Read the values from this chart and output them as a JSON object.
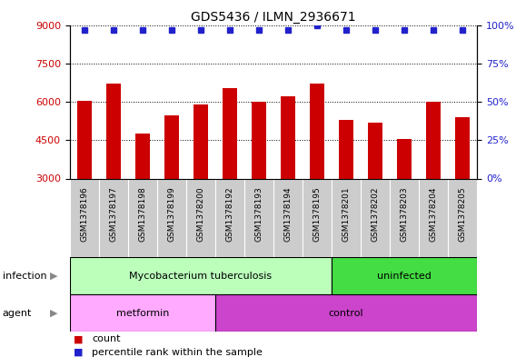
{
  "title": "GDS5436 / ILMN_2936671",
  "samples": [
    "GSM1378196",
    "GSM1378197",
    "GSM1378198",
    "GSM1378199",
    "GSM1378200",
    "GSM1378192",
    "GSM1378193",
    "GSM1378194",
    "GSM1378195",
    "GSM1378201",
    "GSM1378202",
    "GSM1378203",
    "GSM1378204",
    "GSM1378205"
  ],
  "counts": [
    6030,
    6700,
    4750,
    5450,
    5900,
    6520,
    6010,
    6200,
    6720,
    5280,
    5200,
    4550,
    6010,
    5380
  ],
  "percentile": [
    97,
    97,
    97,
    97,
    97,
    97,
    97,
    97,
    100,
    97,
    97,
    97,
    97,
    97
  ],
  "bar_color": "#cc0000",
  "dot_color": "#2222cc",
  "ylim_left": [
    3000,
    9000
  ],
  "ylim_right": [
    0,
    100
  ],
  "yticks_left": [
    3000,
    4500,
    6000,
    7500,
    9000
  ],
  "yticks_right": [
    0,
    25,
    50,
    75,
    100
  ],
  "infection_groups": [
    {
      "label": "Mycobacterium tuberculosis",
      "start": 0,
      "end": 9,
      "color": "#bbffbb"
    },
    {
      "label": "uninfected",
      "start": 9,
      "end": 14,
      "color": "#44dd44"
    }
  ],
  "agent_groups": [
    {
      "label": "metformin",
      "start": 0,
      "end": 5,
      "color": "#ffaaff"
    },
    {
      "label": "control",
      "start": 5,
      "end": 14,
      "color": "#cc44cc"
    }
  ],
  "legend_items": [
    {
      "label": "count",
      "color": "#cc0000"
    },
    {
      "label": "percentile rank within the sample",
      "color": "#2222cc"
    }
  ],
  "bg_color": "#ffffff",
  "tick_area_bg": "#cccccc",
  "title_fontsize": 10,
  "tick_fontsize": 8,
  "sample_fontsize": 6.5,
  "row_label_fontsize": 8,
  "row_content_fontsize": 8,
  "legend_fontsize": 8
}
